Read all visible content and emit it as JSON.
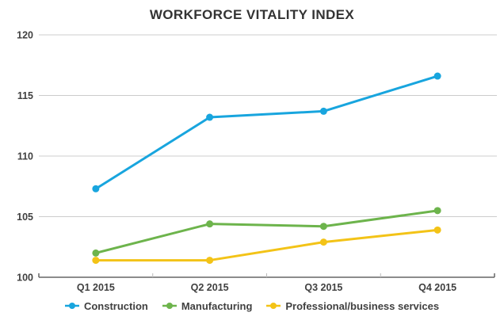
{
  "chart": {
    "title": "WORKFORCE VITALITY INDEX"
  },
  "chart_data": {
    "type": "line",
    "title": "WORKFORCE VITALITY INDEX",
    "categories": [
      "Q1 2015",
      "Q2 2015",
      "Q3 2015",
      "Q4 2015"
    ],
    "series": [
      {
        "name": "Construction",
        "color": "#18a5de",
        "values": [
          107.3,
          113.2,
          113.7,
          116.6
        ]
      },
      {
        "name": "Manufacturing",
        "color": "#6db44c",
        "values": [
          102.0,
          104.4,
          104.2,
          105.5
        ]
      },
      {
        "name": "Professional/business services",
        "color": "#f3c317",
        "values": [
          101.4,
          101.4,
          102.9,
          103.9
        ]
      }
    ],
    "ylim": [
      100,
      120
    ],
    "yticks": [
      100,
      105,
      110,
      115,
      120
    ],
    "grid": true,
    "legend_position": "bottom",
    "colors": {
      "grid_line": "#cccccc",
      "axis_line": "#666666",
      "tick_mark": "#bbbbbb",
      "tick_label": "#404040",
      "title": "#333333",
      "background": "#ffffff"
    }
  }
}
